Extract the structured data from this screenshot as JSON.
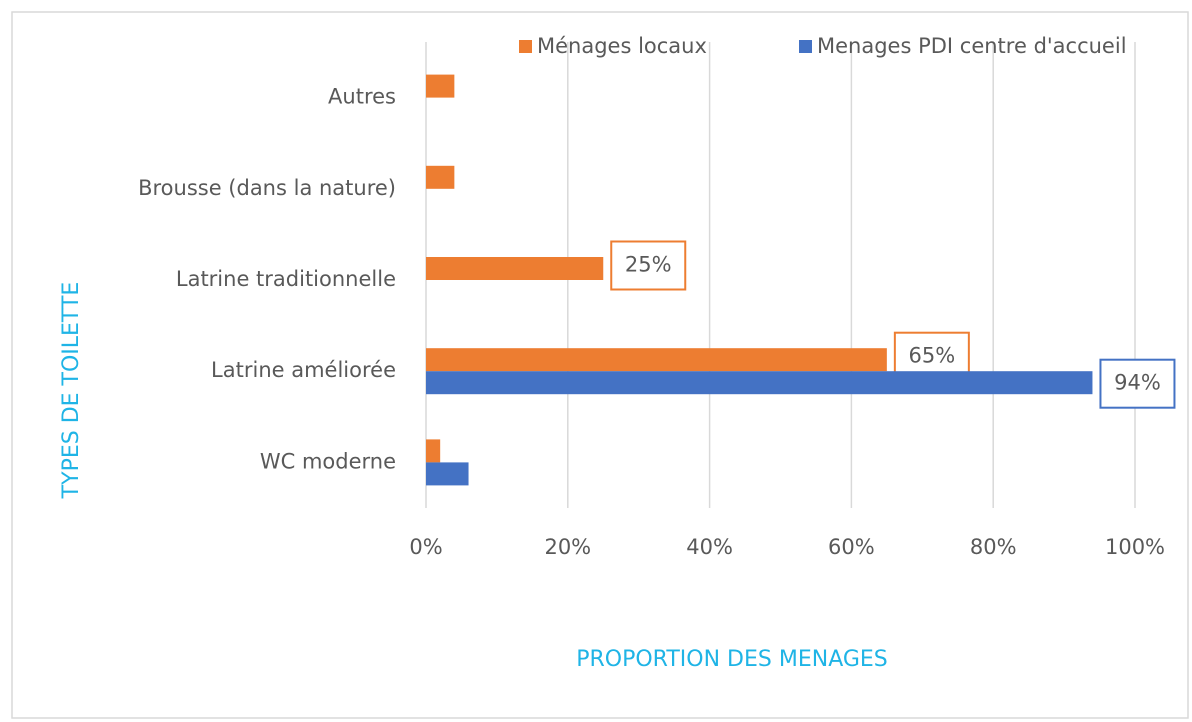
{
  "chart_data": {
    "type": "bar",
    "orientation": "horizontal",
    "x_label": "PROPORTION DES MENAGES",
    "y_label": "TYPES DE TOILETTE",
    "categories": [
      "Autres",
      "Brousse (dans la nature)",
      "Latrine traditionnelle",
      "Latrine améliorée",
      "WC moderne"
    ],
    "series": [
      {
        "name": "Ménages locaux",
        "color": "#ED7D31",
        "values": [
          4,
          4,
          25,
          65,
          2
        ],
        "value_labels": [
          null,
          null,
          "25%",
          "65%",
          null
        ]
      },
      {
        "name": "Menages PDI centre d'accueil",
        "color": "#4472C4",
        "values": [
          0,
          0,
          0,
          94,
          6
        ],
        "value_labels": [
          null,
          null,
          null,
          "94%",
          null
        ]
      }
    ],
    "xlim": [
      0,
      100
    ],
    "xticks": [
      {
        "value": 0,
        "label": "0%"
      },
      {
        "value": 20,
        "label": "20%"
      },
      {
        "value": 40,
        "label": "40%"
      },
      {
        "value": 60,
        "label": "60%"
      },
      {
        "value": 80,
        "label": "80%"
      },
      {
        "value": 100,
        "label": "100%"
      }
    ],
    "grid": true,
    "legend": "top"
  }
}
